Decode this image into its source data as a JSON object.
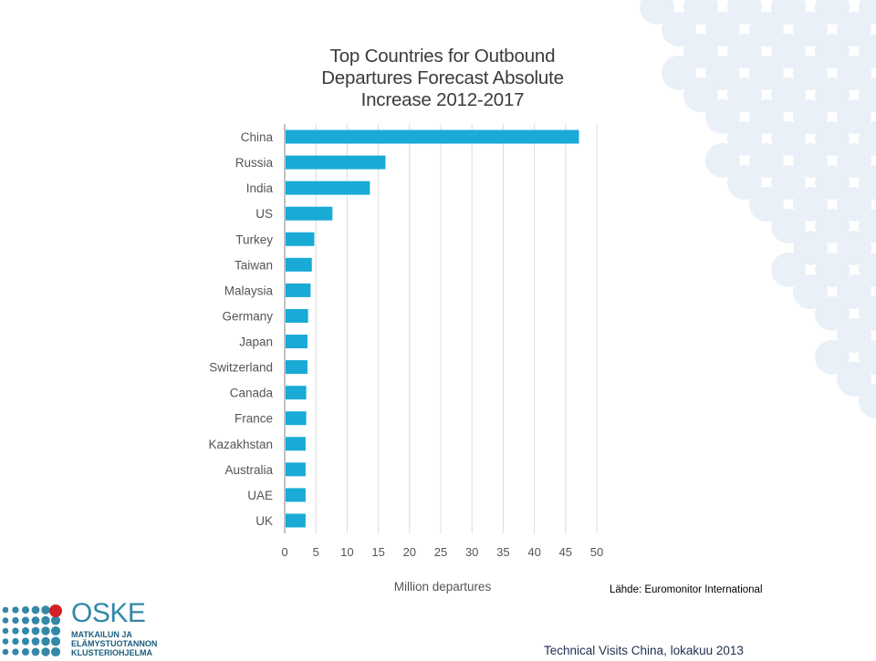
{
  "chart_data": {
    "type": "bar",
    "orientation": "horizontal",
    "title_lines": [
      "Top Countries for Outbound",
      "Departures Forecast Absolute",
      "Increase 2012-2017"
    ],
    "xlabel": "Million departures",
    "ylabel": "",
    "categories": [
      "China",
      "Russia",
      "India",
      "US",
      "Turkey",
      "Taiwan",
      "Malaysia",
      "Germany",
      "Japan",
      "Switzerland",
      "Canada",
      "France",
      "Kazakhstan",
      "Australia",
      "UAE",
      "UK"
    ],
    "values": [
      47,
      16,
      13.5,
      7.5,
      4.6,
      4.2,
      4.0,
      3.6,
      3.5,
      3.5,
      3.3,
      3.3,
      3.2,
      3.2,
      3.2,
      3.2
    ],
    "xlim": [
      0,
      50
    ],
    "xticks": [
      "0",
      "5",
      "10",
      "15",
      "20",
      "25",
      "30",
      "35",
      "40",
      "45",
      "50"
    ],
    "grid": "vertical",
    "bar_color": "#19aad6",
    "legend": "none"
  },
  "source": "Lähde: Euromonitor International",
  "footer": "Technical Visits China, lokakuu 2013",
  "logo": {
    "name": "OSKE",
    "sub_lines": [
      "MATKAILUN JA",
      "ELÄMYSTUOTANNON",
      "KLUSTERIOHJELMA"
    ]
  },
  "colors": {
    "decor_dots": "#e9f0f7",
    "logo_teal": "#3388a8",
    "logo_red": "#d42027",
    "footer_text": "#1f2f4f"
  }
}
